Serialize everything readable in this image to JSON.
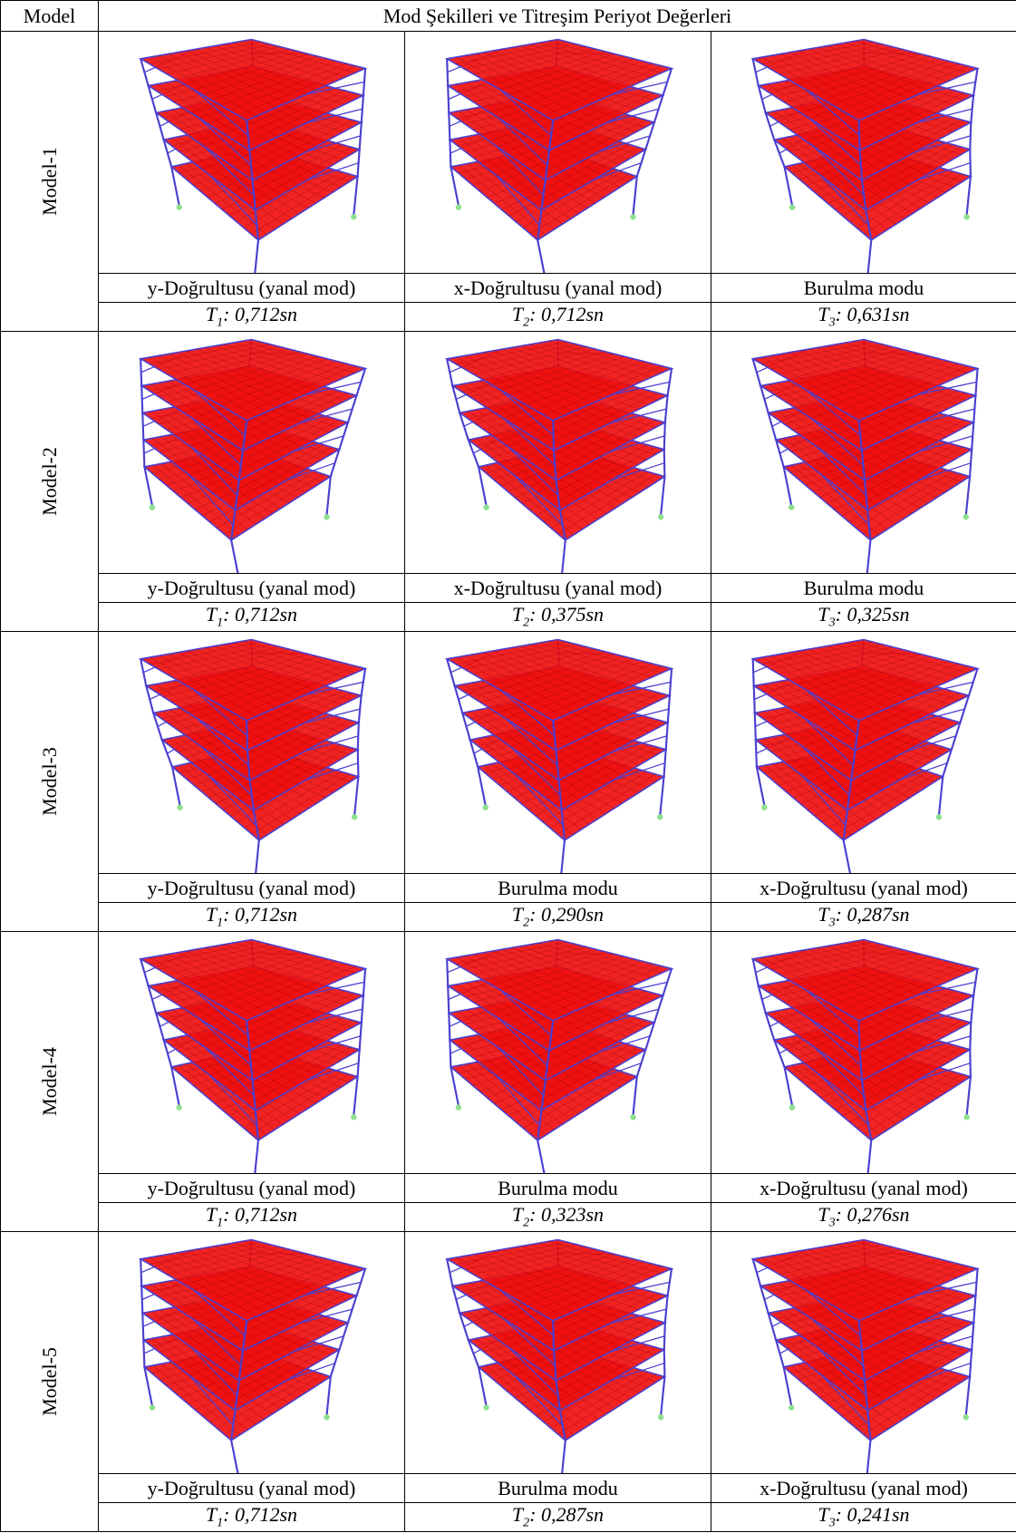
{
  "header": {
    "model": "Model",
    "title": "Mod Şekilleri ve Titreşim Periyot Değerleri"
  },
  "rows": [
    {
      "model": "Model-1",
      "modes": [
        {
          "label": "y-Doğrultusu (yanal mod)",
          "period": {
            "symbol": "T",
            "index": "1",
            "text": ": 0,712sn"
          }
        },
        {
          "label": "x-Doğrultusu (yanal mod)",
          "period": {
            "symbol": "T",
            "index": "2",
            "text": ": 0,712sn"
          }
        },
        {
          "label": "Burulma modu",
          "period": {
            "symbol": "T",
            "index": "3",
            "text": ": 0,631sn"
          }
        }
      ]
    },
    {
      "model": "Model-2",
      "modes": [
        {
          "label": "y-Doğrultusu (yanal mod)",
          "period": {
            "symbol": "T",
            "index": "1",
            "text": ": 0,712sn"
          }
        },
        {
          "label": "x-Doğrultusu (yanal mod)",
          "period": {
            "symbol": "T",
            "index": "2",
            "text": ": 0,375sn"
          }
        },
        {
          "label": "Burulma modu",
          "period": {
            "symbol": "T",
            "index": "3",
            "text": ": 0,325sn"
          }
        }
      ]
    },
    {
      "model": "Model-3",
      "modes": [
        {
          "label": "y-Doğrultusu (yanal mod)",
          "period": {
            "symbol": "T",
            "index": "1",
            "text": ": 0,712sn"
          }
        },
        {
          "label": "Burulma modu",
          "period": {
            "symbol": "T",
            "index": "2",
            "text": ": 0,290sn"
          }
        },
        {
          "label": "x-Doğrultusu (yanal mod)",
          "period": {
            "symbol": "T",
            "index": "3",
            "text": ": 0,287sn"
          }
        }
      ]
    },
    {
      "model": "Model-4",
      "modes": [
        {
          "label": "y-Doğrultusu (yanal mod)",
          "period": {
            "symbol": "T",
            "index": "1",
            "text": ": 0,712sn"
          }
        },
        {
          "label": "Burulma modu",
          "period": {
            "symbol": "T",
            "index": "2",
            "text": ": 0,323sn"
          }
        },
        {
          "label": "x-Doğrultusu (yanal mod)",
          "period": {
            "symbol": "T",
            "index": "3",
            "text": ": 0,276sn"
          }
        }
      ]
    },
    {
      "model": "Model-5",
      "modes": [
        {
          "label": "y-Doğrultusu (yanal mod)",
          "period": {
            "symbol": "T",
            "index": "1",
            "text": ": 0,712sn"
          }
        },
        {
          "label": "Burulma modu",
          "period": {
            "symbol": "T",
            "index": "2",
            "text": ": 0,287sn"
          }
        },
        {
          "label": "x-Doğrultusu (yanal mod)",
          "period": {
            "symbol": "T",
            "index": "3",
            "text": ": 0,241sn"
          }
        }
      ]
    }
  ]
}
